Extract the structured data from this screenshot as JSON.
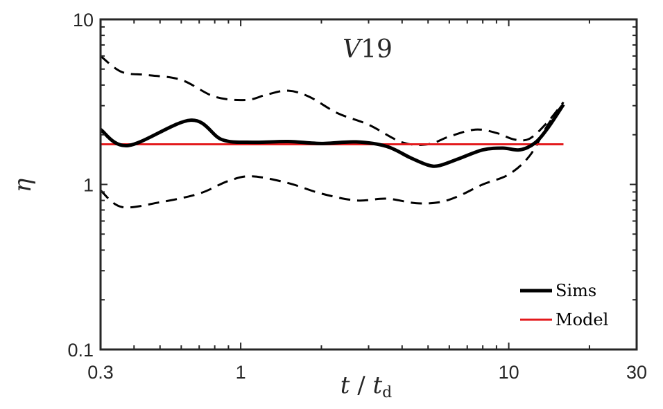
{
  "chart_data": {
    "type": "line",
    "title": "V19",
    "xlabel": "t / t_d",
    "ylabel": "η",
    "xscale": "log",
    "yscale": "log",
    "xlim": [
      0.3,
      30
    ],
    "ylim": [
      0.1,
      10
    ],
    "xticks": [
      "0.3",
      "1",
      "10",
      "30"
    ],
    "yticks": [
      "0.1",
      "1",
      "10"
    ],
    "legend_position": "bottom-right",
    "series": [
      {
        "name": "Sims",
        "style": "solid-thick",
        "color": "#000000",
        "x": [
          0.3,
          0.38,
          0.65,
          0.85,
          1.1,
          1.5,
          2.0,
          2.7,
          3.5,
          4.3,
          5.0,
          5.5,
          6.5,
          8.0,
          9.5,
          11.0,
          12.5,
          14.0,
          16.0
        ],
        "y": [
          2.15,
          1.72,
          2.45,
          1.87,
          1.8,
          1.82,
          1.77,
          1.81,
          1.7,
          1.45,
          1.31,
          1.3,
          1.43,
          1.62,
          1.66,
          1.62,
          1.78,
          2.2,
          3.05
        ]
      },
      {
        "name": "",
        "style": "dashed",
        "color": "#000000",
        "x": [
          0.3,
          0.36,
          0.45,
          0.6,
          0.8,
          1.05,
          1.25,
          1.5,
          1.8,
          2.3,
          3.0,
          4.0,
          5.0,
          6.0,
          7.5,
          9.0,
          10.5,
          12.0,
          14.0,
          16.0
        ],
        "y": [
          6.0,
          4.8,
          4.6,
          4.3,
          3.4,
          3.25,
          3.5,
          3.7,
          3.4,
          2.7,
          2.3,
          1.8,
          1.75,
          1.95,
          2.15,
          2.05,
          1.87,
          1.9,
          2.4,
          3.15
        ]
      },
      {
        "name": "",
        "style": "dashed",
        "color": "#000000",
        "x": [
          0.3,
          0.36,
          0.5,
          0.7,
          0.9,
          1.1,
          1.5,
          2.0,
          2.7,
          3.5,
          4.5,
          5.5,
          6.5,
          8.0,
          10.0,
          12.0,
          14.0,
          16.0
        ],
        "y": [
          0.92,
          0.73,
          0.78,
          0.88,
          1.05,
          1.12,
          1.02,
          0.88,
          0.8,
          0.82,
          0.77,
          0.78,
          0.85,
          1.0,
          1.15,
          1.5,
          2.3,
          3.1
        ]
      },
      {
        "name": "Model",
        "style": "solid",
        "color": "#e31a1c",
        "x": [
          0.3,
          16.0
        ],
        "y": [
          1.75,
          1.75
        ]
      }
    ],
    "legend": [
      "Sims",
      "Model"
    ]
  }
}
